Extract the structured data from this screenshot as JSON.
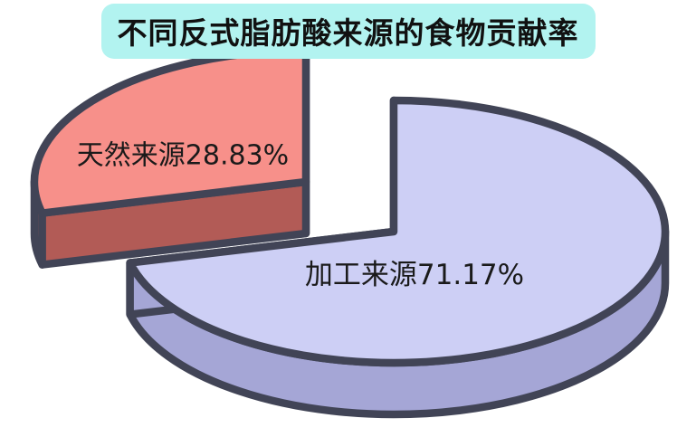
{
  "page": {
    "background_color": "#ffffff"
  },
  "title": {
    "text": "不同反式脂肪酸来源的食物贡献率",
    "bg_color": "#b2f3f0",
    "text_color": "#111111"
  },
  "chart_data": {
    "type": "pie",
    "style": "3d-exploded-cartoon",
    "title": "不同反式脂肪酸来源的食物贡献率",
    "start_angle_deg": 90,
    "direction": "counterclockwise",
    "outline_color": "#414456",
    "label_color": "#1a1a1a",
    "legend_position": "none",
    "slices": [
      {
        "label": "天然来源",
        "value": 28.83,
        "unit": "%",
        "display": "天然来源28.83%",
        "exploded": true,
        "color_top": "#f7908a",
        "color_side": "#b25b56"
      },
      {
        "label": "加工来源",
        "value": 71.17,
        "unit": "%",
        "display": "加工来源71.17%",
        "exploded": false,
        "color_top": "#cdcff5",
        "color_side": "#a5a6d6"
      }
    ]
  }
}
